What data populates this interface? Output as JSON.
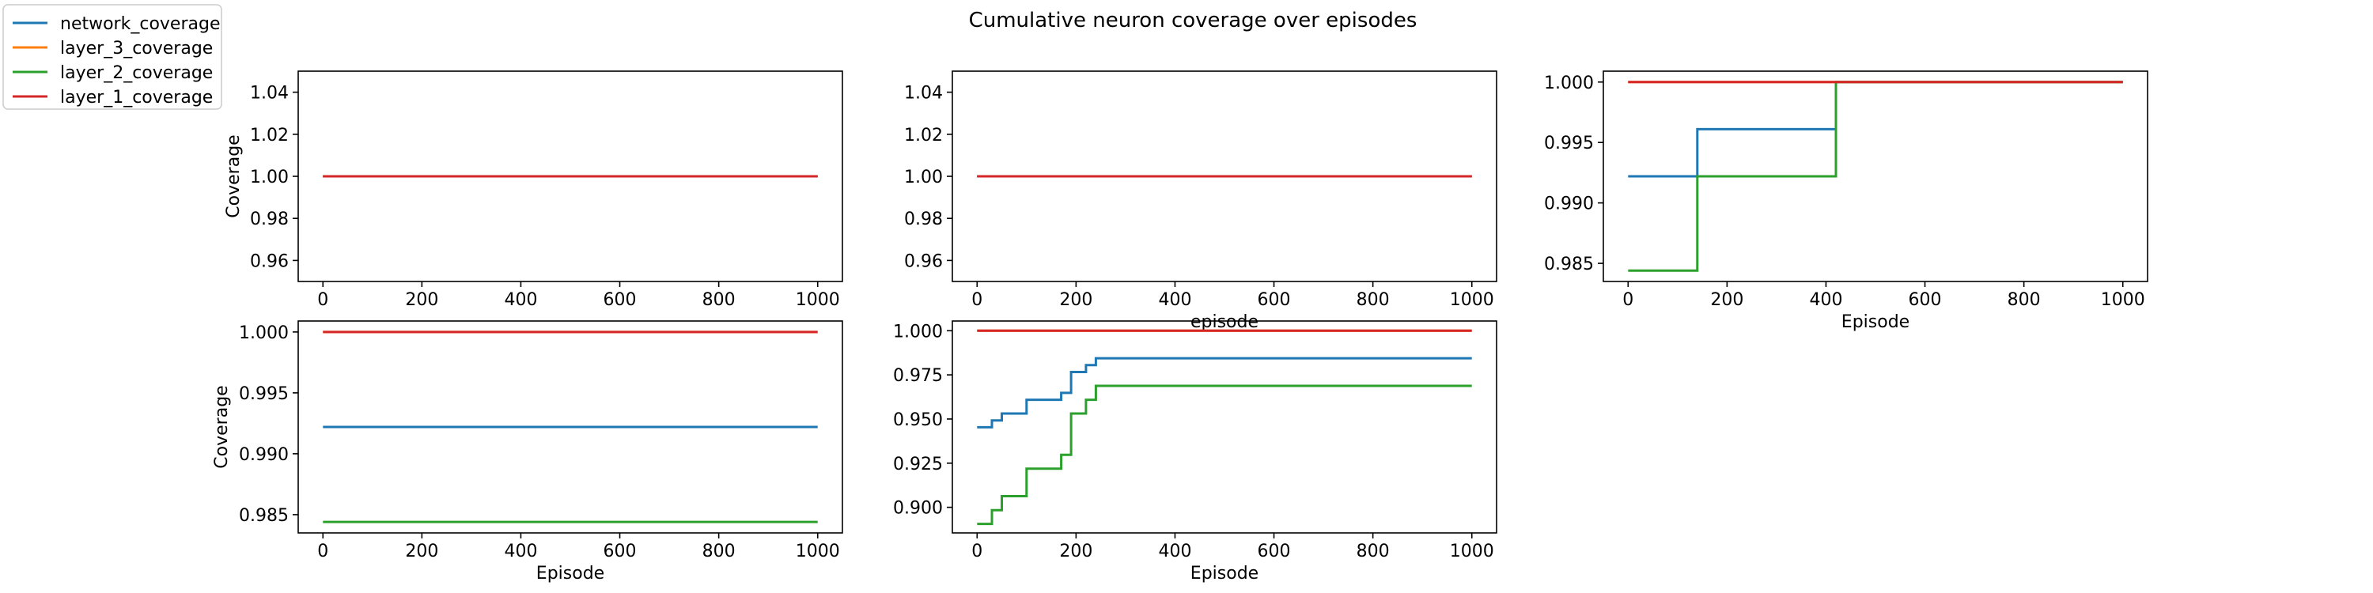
{
  "figure": {
    "title": "Cumulative neuron coverage over episodes"
  },
  "colors": {
    "network_coverage": "#1f77b4",
    "layer_3_coverage": "#ff7f0e",
    "layer_2_coverage": "#2ca02c",
    "layer_1_coverage": "#d62728"
  },
  "legend": {
    "placement": "top-left",
    "entries": [
      "network_coverage",
      "layer_3_coverage",
      "layer_2_coverage",
      "layer_1_coverage"
    ]
  },
  "chart_data": [
    {
      "type": "line",
      "xlabel": "",
      "ylabel": "Coverage",
      "xlim": [
        -50,
        1050
      ],
      "ylim": [
        0.95,
        1.05
      ],
      "xticks": [
        0,
        200,
        400,
        600,
        800,
        1000
      ],
      "yticks": [
        0.96,
        0.98,
        1.0,
        1.02,
        1.04
      ],
      "ytick_labels": [
        "0.96",
        "0.98",
        "1.00",
        "1.02",
        "1.04"
      ],
      "series": [
        {
          "name": "network_coverage",
          "x": [
            0,
            1000
          ],
          "y": [
            1.0,
            1.0
          ]
        },
        {
          "name": "layer_3_coverage",
          "x": [
            0,
            1000
          ],
          "y": [
            1.0,
            1.0
          ]
        },
        {
          "name": "layer_2_coverage",
          "x": [
            0,
            1000
          ],
          "y": [
            1.0,
            1.0
          ]
        },
        {
          "name": "layer_1_coverage",
          "x": [
            0,
            1000
          ],
          "y": [
            1.0,
            1.0
          ]
        }
      ]
    },
    {
      "type": "line",
      "xlabel": "episode",
      "ylabel": "",
      "xlim": [
        -50,
        1050
      ],
      "ylim": [
        0.95,
        1.05
      ],
      "xticks": [
        0,
        200,
        400,
        600,
        800,
        1000
      ],
      "yticks": [
        0.96,
        0.98,
        1.0,
        1.02,
        1.04
      ],
      "ytick_labels": [
        "0.96",
        "0.98",
        "1.00",
        "1.02",
        "1.04"
      ],
      "series": [
        {
          "name": "network_coverage",
          "x": [
            0,
            1000
          ],
          "y": [
            1.0,
            1.0
          ]
        },
        {
          "name": "layer_3_coverage",
          "x": [
            0,
            1000
          ],
          "y": [
            1.0,
            1.0
          ]
        },
        {
          "name": "layer_2_coverage",
          "x": [
            0,
            1000
          ],
          "y": [
            1.0,
            1.0
          ]
        },
        {
          "name": "layer_1_coverage",
          "x": [
            0,
            1000
          ],
          "y": [
            1.0,
            1.0
          ]
        }
      ]
    },
    {
      "type": "line",
      "xlabel": "Episode",
      "ylabel": "",
      "xlim": [
        -50,
        1050
      ],
      "ylim": [
        0.9835,
        1.0009
      ],
      "xticks": [
        0,
        200,
        400,
        600,
        800,
        1000
      ],
      "yticks": [
        0.985,
        0.99,
        0.995,
        1.0
      ],
      "ytick_labels": [
        "0.985",
        "0.990",
        "0.995",
        "1.000"
      ],
      "series": [
        {
          "name": "network_coverage",
          "x": [
            0,
            140,
            140,
            420,
            420,
            1000
          ],
          "y": [
            0.9922,
            0.9922,
            0.9961,
            0.9961,
            1.0,
            1.0
          ]
        },
        {
          "name": "layer_3_coverage",
          "x": [
            0,
            1000
          ],
          "y": [
            1.0,
            1.0
          ]
        },
        {
          "name": "layer_2_coverage",
          "x": [
            0,
            140,
            140,
            420,
            420,
            1000
          ],
          "y": [
            0.9844,
            0.9844,
            0.9922,
            0.9922,
            1.0,
            1.0
          ]
        },
        {
          "name": "layer_1_coverage",
          "x": [
            0,
            1000
          ],
          "y": [
            1.0,
            1.0
          ]
        }
      ]
    },
    {
      "type": "line",
      "xlabel": "Episode",
      "ylabel": "Coverage",
      "xlim": [
        -50,
        1050
      ],
      "ylim": [
        0.9835,
        1.0009
      ],
      "xticks": [
        0,
        200,
        400,
        600,
        800,
        1000
      ],
      "yticks": [
        0.985,
        0.99,
        0.995,
        1.0
      ],
      "ytick_labels": [
        "0.985",
        "0.990",
        "0.995",
        "1.000"
      ],
      "series": [
        {
          "name": "network_coverage",
          "x": [
            0,
            1000
          ],
          "y": [
            0.9922,
            0.9922
          ]
        },
        {
          "name": "layer_3_coverage",
          "x": [
            0,
            1000
          ],
          "y": [
            1.0,
            1.0
          ]
        },
        {
          "name": "layer_2_coverage",
          "x": [
            0,
            1000
          ],
          "y": [
            0.9844,
            0.9844
          ]
        },
        {
          "name": "layer_1_coverage",
          "x": [
            0,
            1000
          ],
          "y": [
            1.0,
            1.0
          ]
        }
      ]
    },
    {
      "type": "line",
      "xlabel": "Episode",
      "ylabel": "",
      "xlim": [
        -50,
        1050
      ],
      "ylim": [
        0.8855,
        1.0055
      ],
      "xticks": [
        0,
        200,
        400,
        600,
        800,
        1000
      ],
      "yticks": [
        0.9,
        0.925,
        0.95,
        0.975,
        1.0
      ],
      "ytick_labels": [
        "0.900",
        "0.925",
        "0.950",
        "0.975",
        "1.000"
      ],
      "series": [
        {
          "name": "network_coverage",
          "x": [
            0,
            30,
            30,
            50,
            50,
            100,
            100,
            170,
            170,
            190,
            190,
            220,
            220,
            240,
            240,
            1000
          ],
          "y": [
            0.9453,
            0.9453,
            0.9492,
            0.9492,
            0.9531,
            0.9531,
            0.9609,
            0.9609,
            0.9648,
            0.9648,
            0.9766,
            0.9766,
            0.9805,
            0.9805,
            0.9844,
            0.9844
          ]
        },
        {
          "name": "layer_3_coverage",
          "x": [
            0,
            1000
          ],
          "y": [
            1.0,
            1.0
          ]
        },
        {
          "name": "layer_2_coverage",
          "x": [
            0,
            30,
            30,
            50,
            50,
            100,
            100,
            170,
            170,
            190,
            190,
            220,
            220,
            240,
            240,
            1000
          ],
          "y": [
            0.8906,
            0.8906,
            0.8984,
            0.8984,
            0.9063,
            0.9063,
            0.9219,
            0.9219,
            0.9297,
            0.9297,
            0.9531,
            0.9531,
            0.9609,
            0.9609,
            0.9688,
            0.9688
          ]
        },
        {
          "name": "layer_1_coverage",
          "x": [
            0,
            1000
          ],
          "y": [
            1.0,
            1.0
          ]
        }
      ]
    }
  ]
}
